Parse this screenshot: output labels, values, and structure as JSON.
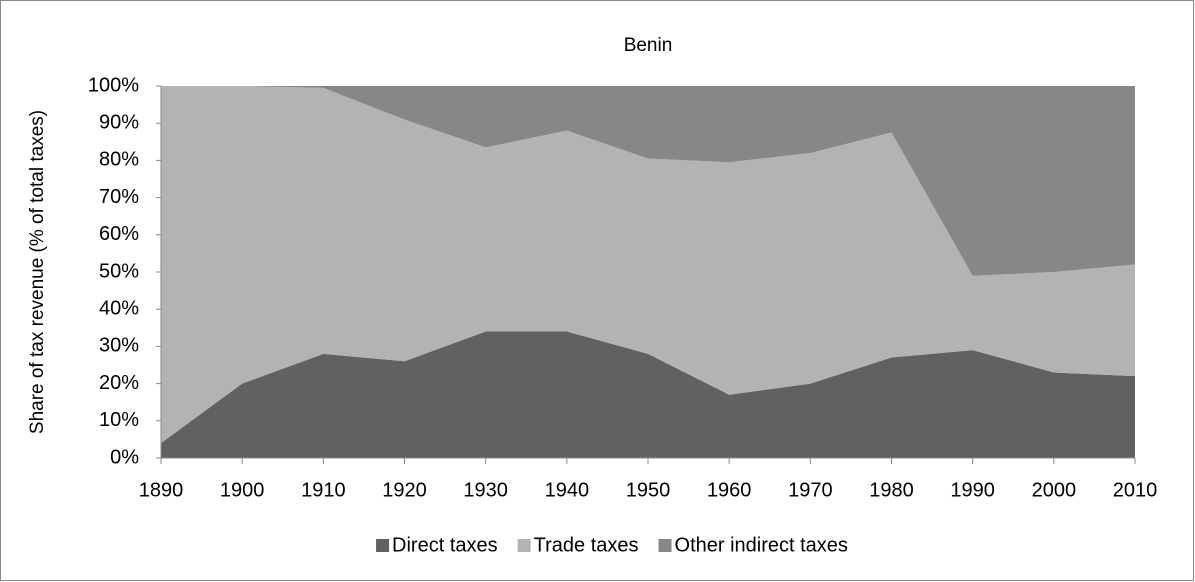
{
  "chart_data": {
    "type": "stacked_area_percent",
    "title": "Benin",
    "y_label": "Share of tax revenue (% of total taxes)",
    "x": [
      1890,
      1900,
      1910,
      1920,
      1930,
      1940,
      1950,
      1960,
      1970,
      1980,
      1990,
      2000,
      2010
    ],
    "series": [
      {
        "name": "Direct taxes",
        "color": "#616161",
        "values": [
          4,
          20,
          28,
          26,
          34,
          34,
          28,
          17,
          20,
          27,
          29,
          23,
          22
        ]
      },
      {
        "name": "Trade taxes",
        "color": "#b3b3b3",
        "values": [
          96,
          80,
          71.5,
          65,
          49.5,
          54,
          52.5,
          62.5,
          62,
          60.5,
          20,
          27,
          30
        ]
      },
      {
        "name": "Other indirect taxes",
        "color": "#878787",
        "values": [
          0,
          0,
          0.5,
          9,
          16.5,
          12,
          19.5,
          20.5,
          18,
          12.5,
          51,
          50,
          48
        ]
      }
    ],
    "xlim": [
      1890,
      2010
    ],
    "xticks": [
      1890,
      1900,
      1910,
      1920,
      1930,
      1940,
      1950,
      1960,
      1970,
      1980,
      1990,
      2000,
      2010
    ],
    "ylim": [
      0,
      100
    ],
    "yticks": [
      {
        "value": 0,
        "label": "0%"
      },
      {
        "value": 10,
        "label": "10%"
      },
      {
        "value": 20,
        "label": "20%"
      },
      {
        "value": 30,
        "label": "30%"
      },
      {
        "value": 40,
        "label": "40%"
      },
      {
        "value": 50,
        "label": "50%"
      },
      {
        "value": 60,
        "label": "60%"
      },
      {
        "value": 70,
        "label": "70%"
      },
      {
        "value": 80,
        "label": "80%"
      },
      {
        "value": 90,
        "label": "90%"
      },
      {
        "value": 100,
        "label": "100%"
      }
    ],
    "legend": "bottom"
  }
}
